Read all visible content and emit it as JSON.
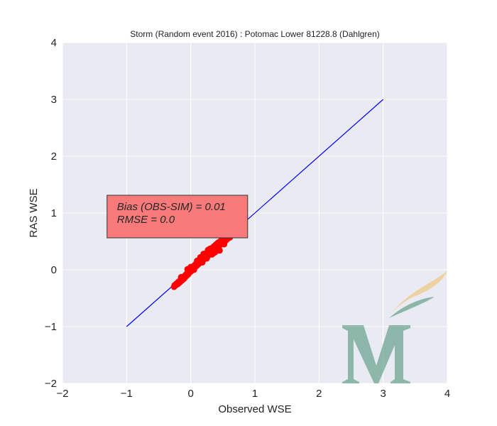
{
  "chart_data": {
    "type": "scatter",
    "title": "Storm (Random event 2016) : Potomac Lower 81228.8 (Dahlgren)",
    "xlabel": "Observed WSE",
    "ylabel": "RAS WSE",
    "xlim": [
      -2,
      4
    ],
    "ylim": [
      -2,
      4
    ],
    "xticks": [
      -2,
      -1,
      0,
      1,
      2,
      3,
      4
    ],
    "yticks": [
      -2,
      -1,
      0,
      1,
      2,
      3,
      4
    ],
    "xtick_labels": [
      "−2",
      "−1",
      "0",
      "1",
      "2",
      "3",
      "4"
    ],
    "ytick_labels": [
      "−2",
      "−1",
      "0",
      "1",
      "2",
      "3",
      "4"
    ],
    "grid": true,
    "colors": {
      "background": "#EAEAF2",
      "grid": "#FFFFFF",
      "points": "#FF0000",
      "reference_line": "#0000FF",
      "annotation_box": "#F87A7A"
    },
    "reference_line": {
      "x": [
        -1,
        3
      ],
      "y": [
        -1,
        3
      ]
    },
    "annotation": {
      "lines": [
        "Bias (OBS-SIM) = 0.01",
        "RMSE = 0.0"
      ],
      "x": -1.15,
      "y": 1.05
    },
    "series": [
      {
        "values": [
          [
            -0.26,
            -0.3
          ],
          [
            -0.25,
            -0.27
          ],
          [
            -0.23,
            -0.27
          ],
          [
            -0.22,
            -0.24
          ],
          [
            -0.2,
            -0.25
          ],
          [
            -0.19,
            -0.21
          ],
          [
            -0.17,
            -0.22
          ],
          [
            -0.16,
            -0.18
          ],
          [
            -0.14,
            -0.19
          ],
          [
            -0.13,
            -0.15
          ],
          [
            -0.12,
            -0.17
          ],
          [
            -0.11,
            -0.13
          ],
          [
            -0.1,
            -0.15
          ],
          [
            -0.09,
            -0.1
          ],
          [
            -0.08,
            -0.12
          ],
          [
            -0.07,
            -0.08
          ],
          [
            -0.06,
            -0.1
          ],
          [
            -0.05,
            -0.05
          ],
          [
            -0.04,
            -0.08
          ],
          [
            -0.03,
            -0.03
          ],
          [
            -0.02,
            -0.05
          ],
          [
            -0.01,
            0.0
          ],
          [
            0.0,
            -0.03
          ],
          [
            0.01,
            0.03
          ],
          [
            0.02,
            -0.01
          ],
          [
            0.03,
            0.05
          ],
          [
            0.04,
            0.02
          ],
          [
            0.05,
            0.07
          ],
          [
            0.06,
            0.04
          ],
          [
            0.07,
            0.09
          ],
          [
            0.08,
            0.06
          ],
          [
            0.09,
            0.12
          ],
          [
            0.1,
            0.08
          ],
          [
            0.11,
            0.14
          ],
          [
            0.12,
            0.1
          ],
          [
            0.13,
            0.17
          ],
          [
            0.14,
            0.12
          ],
          [
            0.15,
            0.19
          ],
          [
            0.16,
            0.14
          ],
          [
            0.17,
            0.21
          ],
          [
            0.18,
            0.16
          ],
          [
            0.19,
            0.24
          ],
          [
            0.2,
            0.18
          ],
          [
            0.21,
            0.26
          ],
          [
            0.22,
            0.2
          ],
          [
            0.23,
            0.28
          ],
          [
            0.24,
            0.22
          ],
          [
            0.25,
            0.3
          ],
          [
            0.26,
            0.24
          ],
          [
            0.27,
            0.32
          ],
          [
            0.28,
            0.26
          ],
          [
            0.29,
            0.34
          ],
          [
            0.3,
            0.28
          ],
          [
            0.31,
            0.36
          ],
          [
            0.32,
            0.3
          ],
          [
            0.33,
            0.38
          ],
          [
            0.34,
            0.32
          ],
          [
            0.35,
            0.4
          ],
          [
            0.36,
            0.34
          ],
          [
            0.37,
            0.42
          ],
          [
            0.38,
            0.36
          ],
          [
            0.39,
            0.44
          ],
          [
            0.4,
            0.38
          ],
          [
            0.41,
            0.46
          ],
          [
            0.42,
            0.4
          ],
          [
            0.43,
            0.48
          ],
          [
            0.44,
            0.42
          ],
          [
            0.45,
            0.49
          ],
          [
            0.46,
            0.44
          ],
          [
            0.47,
            0.51
          ],
          [
            0.48,
            0.46
          ],
          [
            0.49,
            0.53
          ],
          [
            0.5,
            0.48
          ],
          [
            0.51,
            0.55
          ],
          [
            0.52,
            0.5
          ],
          [
            0.54,
            0.56
          ],
          [
            0.55,
            0.52
          ],
          [
            0.57,
            0.58
          ],
          [
            0.58,
            0.55
          ],
          [
            0.6,
            0.6
          ],
          [
            0.62,
            0.62
          ],
          [
            0.61,
            0.57
          ],
          [
            0.2,
            0.28
          ],
          [
            0.25,
            0.2
          ],
          [
            0.3,
            0.37
          ],
          [
            0.35,
            0.29
          ],
          [
            0.1,
            0.16
          ],
          [
            0.05,
            0.0
          ],
          [
            0.15,
            0.22
          ],
          [
            -0.05,
            0.01
          ],
          [
            0.45,
            0.34
          ],
          [
            0.4,
            0.45
          ],
          [
            0.52,
            0.45
          ],
          [
            0.0,
            0.05
          ],
          [
            -0.15,
            -0.13
          ],
          [
            0.33,
            0.27
          ],
          [
            0.27,
            0.35
          ],
          [
            0.18,
            0.13
          ],
          [
            0.48,
            0.52
          ],
          [
            0.38,
            0.31
          ]
        ]
      }
    ]
  }
}
